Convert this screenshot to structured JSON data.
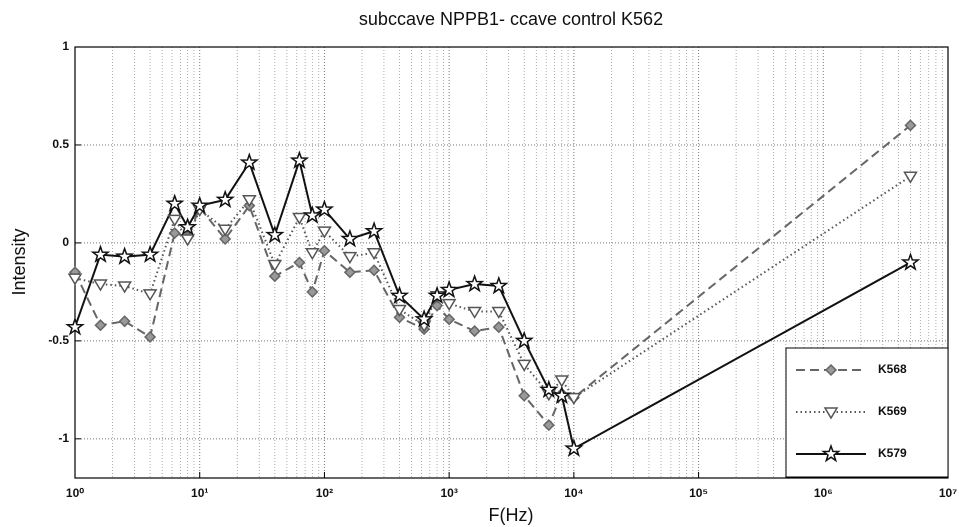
{
  "chart_data": {
    "type": "line",
    "title": "subccave NPPB1- ccave control K562",
    "xlabel": "F(Hz)",
    "ylabel": "Intensity",
    "xscale": "log",
    "grid": true,
    "legend": "lower right",
    "x": [
      1,
      1.6,
      2.5,
      4,
      6.3,
      8,
      10,
      16,
      25,
      40,
      63,
      80,
      100,
      160,
      250,
      400,
      630,
      800,
      1000,
      1600,
      2500,
      4000,
      6300,
      8000,
      10000,
      5000000
    ],
    "xlim": [
      1,
      10000000
    ],
    "xticks": [
      {
        "value": 1,
        "label": "10⁰"
      },
      {
        "value": 10,
        "label": "10¹"
      },
      {
        "value": 100,
        "label": "10²"
      },
      {
        "value": 1000,
        "label": "10³"
      },
      {
        "value": 10000,
        "label": "10⁴"
      },
      {
        "value": 100000,
        "label": "10⁵"
      },
      {
        "value": 1000000,
        "label": "10⁶"
      },
      {
        "value": 10000000,
        "label": "10⁷"
      }
    ],
    "ylim": [
      -1.2,
      1
    ],
    "yticks": [
      -1,
      -0.5,
      0,
      0.5,
      1
    ],
    "series": [
      {
        "name": "K568",
        "color": "#666666",
        "dash": "dashed",
        "marker": "diamond",
        "values": [
          -0.15,
          -0.42,
          -0.4,
          -0.48,
          0.05,
          0.03,
          0.18,
          0.02,
          0.19,
          -0.17,
          -0.1,
          -0.25,
          -0.04,
          -0.15,
          -0.14,
          -0.38,
          -0.44,
          -0.32,
          -0.39,
          -0.45,
          -0.43,
          -0.78,
          -0.93,
          -0.77,
          -0.79,
          0.6
        ]
      },
      {
        "name": "K569",
        "color": "#555555",
        "dash": "dotted",
        "marker": "triangle-down",
        "values": [
          -0.18,
          -0.21,
          -0.22,
          -0.26,
          0.12,
          0.02,
          0.17,
          0.07,
          0.22,
          -0.11,
          0.13,
          -0.05,
          0.06,
          -0.07,
          -0.05,
          -0.34,
          -0.42,
          -0.27,
          -0.31,
          -0.35,
          -0.35,
          -0.62,
          -0.77,
          -0.7,
          -0.79,
          0.34
        ]
      },
      {
        "name": "K579",
        "color": "#111111",
        "dash": "solid",
        "marker": "star",
        "values": [
          -0.43,
          -0.06,
          -0.07,
          -0.06,
          0.2,
          0.08,
          0.19,
          0.22,
          0.41,
          0.04,
          0.42,
          0.14,
          0.17,
          0.02,
          0.06,
          -0.27,
          -0.39,
          -0.27,
          -0.24,
          -0.21,
          -0.22,
          -0.5,
          -0.75,
          -0.78,
          -1.05,
          -0.1
        ]
      }
    ]
  }
}
